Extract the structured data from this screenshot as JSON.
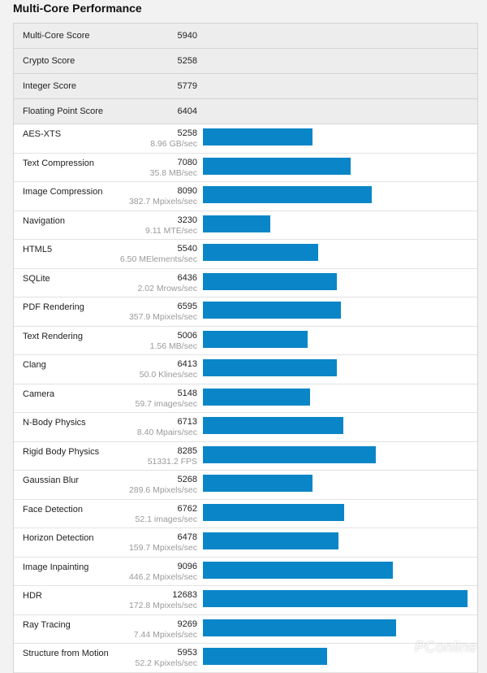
{
  "page": {
    "title": "Multi-Core Performance",
    "watermark": "PConline"
  },
  "colors": {
    "bar": "#0a86c8",
    "summary_bg": "#ededed"
  },
  "summary": [
    {
      "label": "Multi-Core Score",
      "value": "5940"
    },
    {
      "label": "Crypto Score",
      "value": "5258"
    },
    {
      "label": "Integer Score",
      "value": "5779"
    },
    {
      "label": "Floating Point Score",
      "value": "6404"
    }
  ],
  "chart_data": {
    "type": "bar",
    "title": "Multi-Core Performance",
    "xlim": [
      0,
      12683
    ],
    "categories": [
      "AES-XTS",
      "Text Compression",
      "Image Compression",
      "Navigation",
      "HTML5",
      "SQLite",
      "PDF Rendering",
      "Text Rendering",
      "Clang",
      "Camera",
      "N-Body Physics",
      "Rigid Body Physics",
      "Gaussian Blur",
      "Face Detection",
      "Horizon Detection",
      "Image Inpainting",
      "HDR",
      "Ray Tracing",
      "Structure from Motion"
    ],
    "values": [
      5258,
      7080,
      8090,
      3230,
      5540,
      6436,
      6595,
      5006,
      6413,
      5148,
      6713,
      8285,
      5268,
      6762,
      6478,
      9096,
      12683,
      9269,
      5953
    ],
    "units": [
      "8.96 GB/sec",
      "35.8 MB/sec",
      "382.7 Mpixels/sec",
      "9.11 MTE/sec",
      "6.50 MElements/sec",
      "2.02 Mrows/sec",
      "357.9 Mpixels/sec",
      "1.56 MB/sec",
      "50.0 Klines/sec",
      "59.7 images/sec",
      "8.40 Mpairs/sec",
      "51331.2 FPS",
      "289.6 Mpixels/sec",
      "52.1 images/sec",
      "159.7 Mpixels/sec",
      "446.2 Mpixels/sec",
      "172.8 Mpixels/sec",
      "7.44 Mpixels/sec",
      "52.2 Kpixels/sec"
    ]
  }
}
